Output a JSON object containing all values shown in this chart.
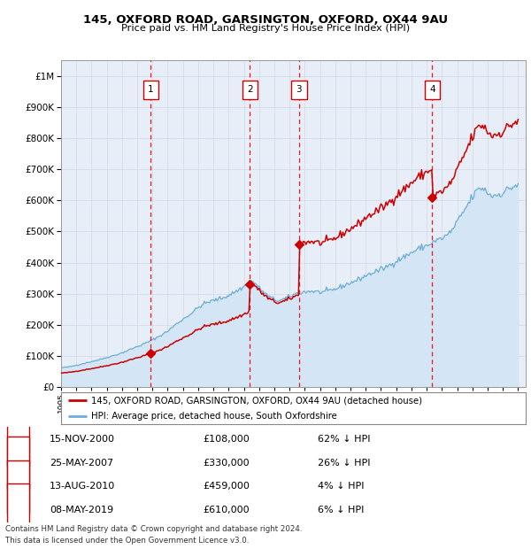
{
  "title": "145, OXFORD ROAD, GARSINGTON, OXFORD, OX44 9AU",
  "subtitle": "Price paid vs. HM Land Registry's House Price Index (HPI)",
  "footer1": "Contains HM Land Registry data © Crown copyright and database right 2024.",
  "footer2": "This data is licensed under the Open Government Licence v3.0.",
  "legend_property": "145, OXFORD ROAD, GARSINGTON, OXFORD, OX44 9AU (detached house)",
  "legend_hpi": "HPI: Average price, detached house, South Oxfordshire",
  "transactions": [
    {
      "num": 1,
      "date": "15-NOV-2000",
      "price": 108000,
      "year": 2000.88,
      "pct": "62%",
      "dir": "↓"
    },
    {
      "num": 2,
      "date": "25-MAY-2007",
      "price": 330000,
      "year": 2007.4,
      "pct": "26%",
      "dir": "↓"
    },
    {
      "num": 3,
      "date": "13-AUG-2010",
      "price": 459000,
      "year": 2010.62,
      "pct": "4%",
      "dir": "↓"
    },
    {
      "num": 4,
      "date": "08-MAY-2019",
      "price": 610000,
      "year": 2019.36,
      "pct": "6%",
      "dir": "↓"
    }
  ],
  "hpi_base_years": [
    1995.0,
    1995.5,
    1996.0,
    1996.5,
    1997.0,
    1997.5,
    1998.0,
    1998.5,
    1999.0,
    1999.5,
    2000.0,
    2000.5,
    2001.0,
    2001.5,
    2002.0,
    2002.5,
    2003.0,
    2003.5,
    2004.0,
    2004.5,
    2005.0,
    2005.5,
    2006.0,
    2006.5,
    2007.0,
    2007.3,
    2007.5,
    2007.8,
    2008.0,
    2008.3,
    2008.6,
    2009.0,
    2009.3,
    2009.6,
    2010.0,
    2010.3,
    2010.6,
    2011.0,
    2011.5,
    2012.0,
    2012.5,
    2013.0,
    2013.5,
    2014.0,
    2014.5,
    2015.0,
    2015.5,
    2016.0,
    2016.5,
    2017.0,
    2017.5,
    2018.0,
    2018.5,
    2019.0,
    2019.3,
    2019.5,
    2020.0,
    2020.5,
    2021.0,
    2021.5,
    2022.0,
    2022.3,
    2022.6,
    2023.0,
    2023.3,
    2023.6,
    2024.0,
    2024.5,
    2025.0
  ],
  "hpi_base_vals": [
    62000,
    65000,
    70000,
    76000,
    82000,
    88000,
    95000,
    102000,
    110000,
    120000,
    130000,
    140000,
    152000,
    165000,
    180000,
    200000,
    218000,
    235000,
    255000,
    270000,
    278000,
    285000,
    295000,
    308000,
    322000,
    335000,
    340000,
    330000,
    318000,
    305000,
    292000,
    282000,
    278000,
    282000,
    290000,
    298000,
    302000,
    306000,
    308000,
    305000,
    308000,
    315000,
    325000,
    335000,
    345000,
    358000,
    368000,
    378000,
    390000,
    405000,
    418000,
    432000,
    445000,
    455000,
    462000,
    468000,
    478000,
    495000,
    530000,
    570000,
    610000,
    630000,
    640000,
    625000,
    615000,
    618000,
    625000,
    640000,
    650000
  ],
  "price_paid_years": [
    2000.88,
    2007.4,
    2010.62,
    2019.36
  ],
  "price_paid_values": [
    108000,
    330000,
    459000,
    610000
  ],
  "xlim": [
    1995.0,
    2025.5
  ],
  "ylim": [
    0,
    1050000
  ],
  "hpi_color": "#6baed6",
  "hpi_fill_color": "#d4e6f5",
  "price_color": "#cc0000",
  "marker_box_color": "#cc0000",
  "grid_color": "#d0d8e8",
  "dashed_line_color": "#ee0000",
  "background_color": "#ffffff",
  "plot_bg_color": "#e8eef8"
}
